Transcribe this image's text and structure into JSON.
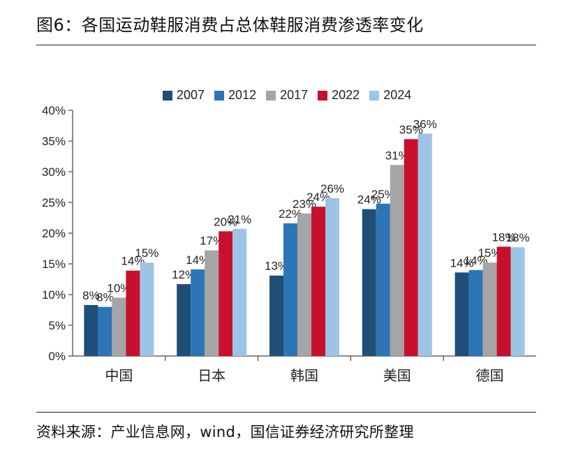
{
  "page": {
    "title": "图6：各国运动鞋服消费占总体鞋服消费渗透率变化",
    "source": "资料来源：产业信息网，wind，国信证券经济研究所整理"
  },
  "chart_data": {
    "type": "bar",
    "title": "图6：各国运动鞋服消费占总体鞋服消费渗透率变化",
    "categories": [
      "中国",
      "日本",
      "韩国",
      "美国",
      "德国"
    ],
    "series": [
      {
        "name": "2007",
        "color": "#1f4e79",
        "values": [
          8.3,
          11.7,
          13.1,
          23.9,
          13.6
        ],
        "labels": [
          "8%",
          "12%",
          "13%",
          "24%",
          "14%"
        ]
      },
      {
        "name": "2012",
        "color": "#2e75b6",
        "values": [
          8.0,
          14.1,
          21.6,
          24.8,
          14.0
        ],
        "labels": [
          "8%",
          "14%",
          "22%",
          "25%",
          "14%"
        ]
      },
      {
        "name": "2017",
        "color": "#a5a5a5",
        "values": [
          9.5,
          17.2,
          23.2,
          31.1,
          15.2
        ],
        "labels": [
          "10%",
          "17%",
          "23%",
          "31%",
          "15%"
        ]
      },
      {
        "name": "2022",
        "color": "#c8102e",
        "values": [
          13.9,
          20.3,
          24.3,
          35.3,
          17.8
        ],
        "labels": [
          "14%",
          "20%",
          "24%",
          "35%",
          "18%"
        ]
      },
      {
        "name": "2024",
        "color": "#9dc3e6",
        "values": [
          15.2,
          20.7,
          25.7,
          36.2,
          17.7
        ],
        "labels": [
          "15%",
          "21%",
          "26%",
          "36%",
          "18%"
        ]
      }
    ],
    "yticks": [
      "0%",
      "5%",
      "10%",
      "15%",
      "20%",
      "25%",
      "30%",
      "35%",
      "40%"
    ],
    "ylim": [
      0,
      40
    ],
    "ystep": 5,
    "xlabel": "",
    "ylabel": "",
    "legend_position": "top-center",
    "grid": false
  }
}
